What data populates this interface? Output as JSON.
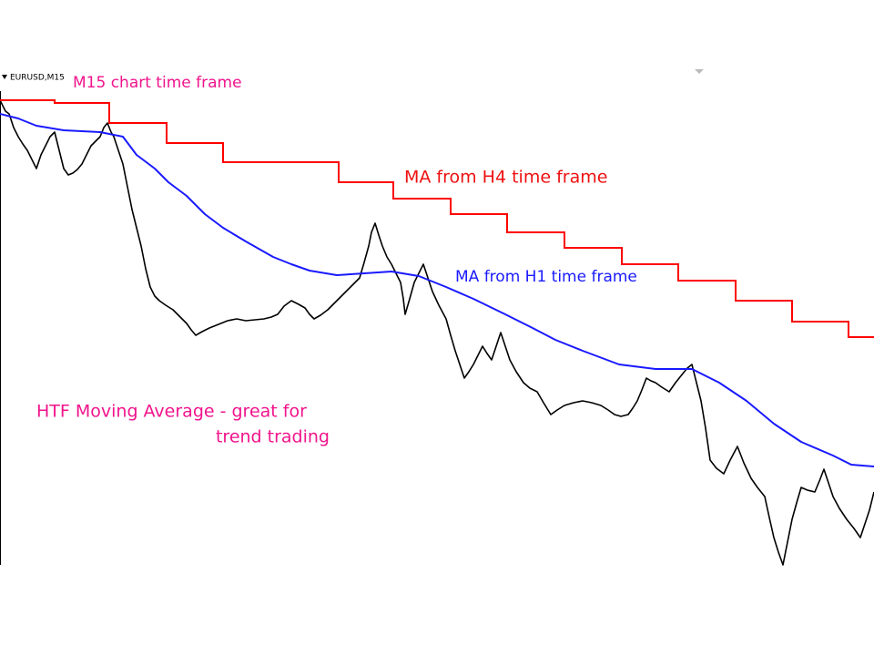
{
  "chart_header": {
    "symbol": "EURUSD,M15"
  },
  "annotations": {
    "chart_timeframe": "M15 chart time frame",
    "h4_label": "MA from H4 time frame",
    "h1_label": "MA from H1 time frame",
    "caption_line1": "HTF Moving Average - great for",
    "caption_line2": "trend trading"
  }
}
